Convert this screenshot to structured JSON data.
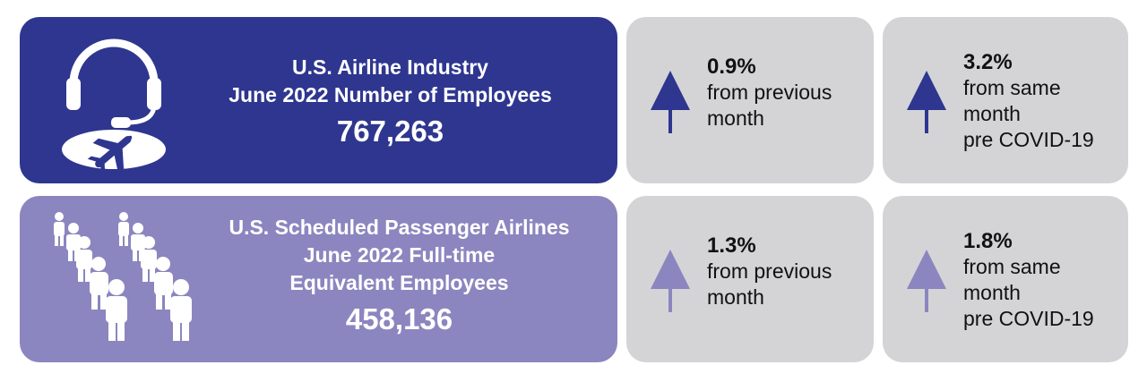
{
  "colors": {
    "row1_main_bg": "#2e368f",
    "row2_main_bg": "#8b86bf",
    "stat_bg": "#d4d4d6",
    "arrow_dark": "#2e368f",
    "arrow_light": "#8b86bf"
  },
  "row1": {
    "icon": "headset-plane-icon",
    "line1": "U.S. Airline Industry",
    "line2": "June 2022 Number of Employees",
    "value": "767,263",
    "stat_month": {
      "pct": "0.9%",
      "lines": [
        "from previous",
        "month"
      ],
      "direction": "up"
    },
    "stat_covid": {
      "pct": "3.2%",
      "lines": [
        "from same",
        "month",
        "pre COVID-19"
      ],
      "direction": "up"
    }
  },
  "row2": {
    "icon": "people-group-icon",
    "line1": "U.S. Scheduled Passenger Airlines",
    "line2": "June 2022 Full-time",
    "line3": "Equivalent Employees",
    "value": "458,136",
    "stat_month": {
      "pct": "1.3%",
      "lines": [
        "from previous",
        "month"
      ],
      "direction": "up"
    },
    "stat_covid": {
      "pct": "1.8%",
      "lines": [
        "from same",
        "month",
        "pre COVID-19"
      ],
      "direction": "up"
    }
  }
}
